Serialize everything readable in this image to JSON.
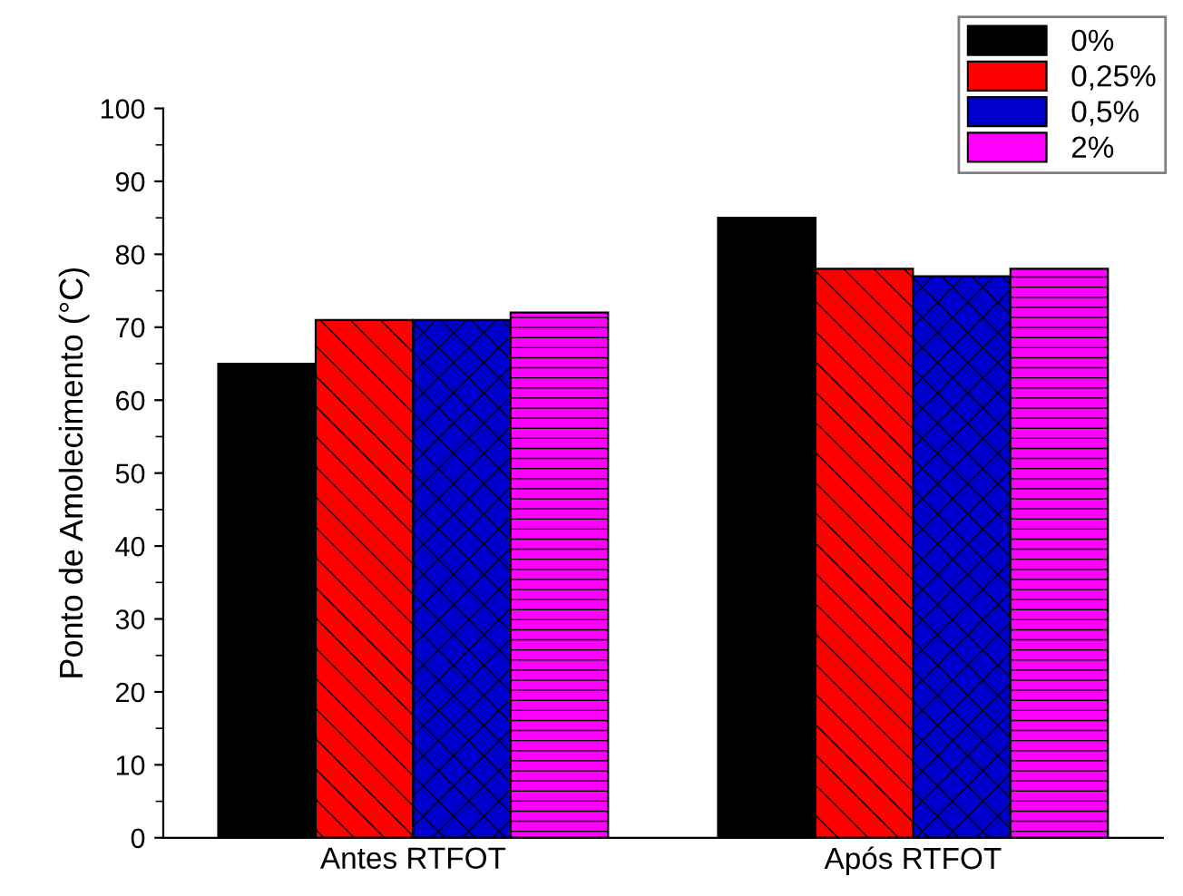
{
  "chart_data": {
    "type": "bar",
    "ylabel": "Ponto de Amolecimento (°C)",
    "categories": [
      "Antes RTFOT",
      "Após RTFOT"
    ],
    "series": [
      {
        "name": "0%",
        "color": "#000000",
        "values": [
          65,
          85
        ]
      },
      {
        "name": "0,25%",
        "color": "#ff0000",
        "values": [
          71,
          78
        ]
      },
      {
        "name": "0,5%",
        "color": "#0000cc",
        "values": [
          71,
          77
        ]
      },
      {
        "name": "2%",
        "color": "#ff00ff",
        "values": [
          72,
          78
        ]
      }
    ],
    "ylim": [
      0,
      100
    ],
    "yticks": [
      0,
      {
        "value": 5,
        "label": null
      },
      10,
      {
        "value": 15,
        "label": null
      },
      20,
      {
        "value": 25,
        "label": null
      },
      30,
      {
        "value": 35,
        "label": null
      },
      40,
      {
        "value": 45,
        "label": null
      },
      50,
      {
        "value": 55,
        "label": null
      },
      60,
      {
        "value": 65,
        "label": null
      },
      70,
      {
        "value": 75,
        "label": null
      },
      80,
      {
        "value": 85,
        "label": null
      },
      90,
      {
        "value": 95,
        "label": null
      },
      100
    ],
    "legend": "top right",
    "grid": false
  }
}
